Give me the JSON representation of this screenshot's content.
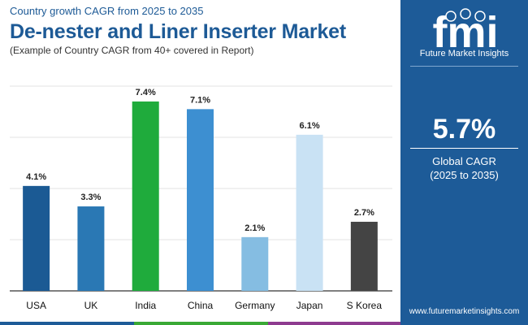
{
  "header": {
    "subtitle": "Country growth CAGR from 2025 to 2035",
    "title": "De-nester and Liner Inserter Market",
    "caption": "(Example of Country CAGR from 40+ covered in Report)"
  },
  "side_panel": {
    "logo_text": "fmi",
    "brand_name": "Future Market Insights",
    "global_cagr_value": "5.7%",
    "global_cagr_label": "Global CAGR",
    "global_cagr_period": "(2025 to 2035)",
    "website": "www.futuremarketinsights.com"
  },
  "colors": {
    "brand_blue": "#1d5b98",
    "footer": [
      "#1d5b98",
      "#3aa935",
      "#8e3b8f"
    ]
  },
  "chart_data": {
    "type": "bar",
    "title": "De-nester and Liner Inserter Market",
    "categories": [
      "USA",
      "UK",
      "India",
      "China",
      "Germany",
      "Japan",
      "S Korea"
    ],
    "values": [
      4.1,
      3.3,
      7.4,
      7.1,
      2.1,
      6.1,
      2.7
    ],
    "data_labels": [
      "4.1%",
      "3.3%",
      "7.4%",
      "7.1%",
      "2.1%",
      "6.1%",
      "2.7%"
    ],
    "bar_colors": [
      "#1b5a94",
      "#2a78b4",
      "#1fab3c",
      "#3d8fd1",
      "#85bde2",
      "#c9e2f4",
      "#444444"
    ],
    "ylim": [
      0,
      8
    ],
    "grid": true,
    "legend": "none"
  }
}
